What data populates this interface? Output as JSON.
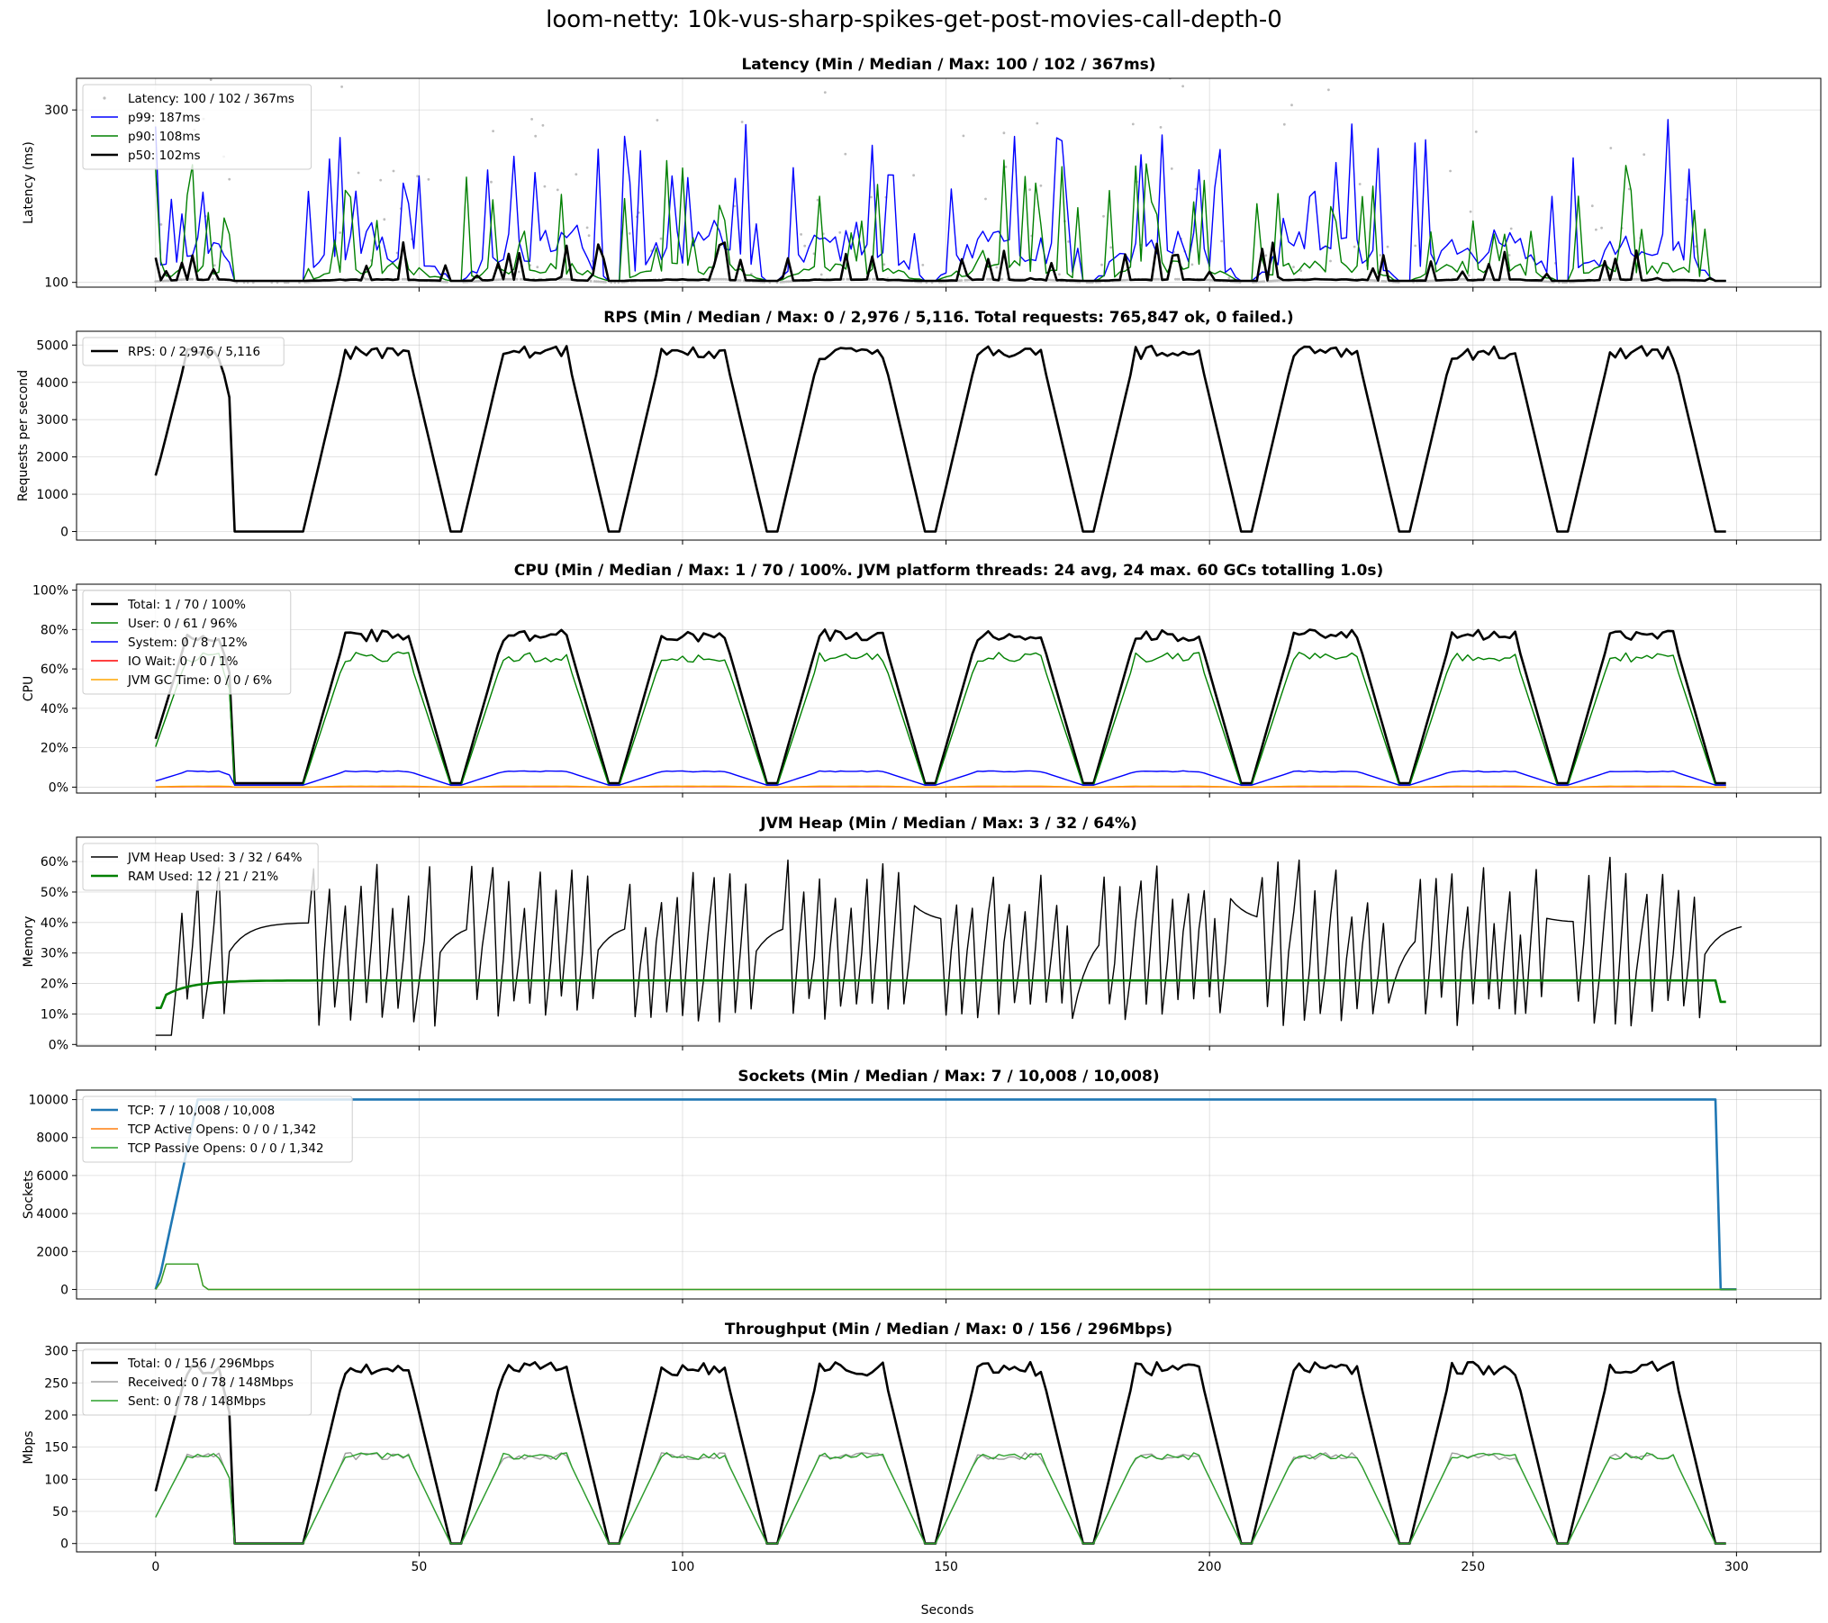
{
  "figure": {
    "title": "loom-netty: 10k-vus-sharp-spikes-get-post-movies-call-depth-0",
    "xlabel": "Seconds",
    "xlim": [
      -15,
      316
    ],
    "xticks": [
      0,
      50,
      100,
      150,
      200,
      250,
      300
    ],
    "cycle": {
      "period": 30,
      "first_rise": 28,
      "ramp": 8,
      "plateau": 6,
      "end": 295
    },
    "colors": {
      "black": "#000000",
      "blue": "#0000ff",
      "green": "#008000",
      "red": "#ff0000",
      "orange": "#ffa500",
      "gray": "#9e9e9e",
      "scatter": "#bdbdbd",
      "tcp": "#1f77b4",
      "tcp_active": "#ff7f0e",
      "tcp_passive": "#2ca02c",
      "sent": "#2ca02c"
    }
  },
  "chart_data": [
    {
      "id": "latency",
      "type": "line",
      "title": "Latency (Min / Median / Max: 100 / 102 / 367ms)",
      "ylabel": "Latency (ms)",
      "scale": "log",
      "ylim": [
        97,
        367
      ],
      "yticks": [
        {
          "v": 100,
          "label": "100"
        },
        {
          "v": 300,
          "label": "300"
        }
      ],
      "legend_position": "top-left",
      "series": [
        {
          "name": "Latency: 100 / 102 / 367ms",
          "color": "#bdbdbd",
          "kind": "scatter",
          "idle_value": 100,
          "active_value": 102,
          "max": 367
        },
        {
          "name": "p99: 187ms",
          "color": "#0000ff",
          "width": 1.4,
          "idle_value": 101,
          "active_value": 140,
          "max": 300
        },
        {
          "name": "p90: 108ms",
          "color": "#008000",
          "width": 1.4,
          "idle_value": 101,
          "active_value": 115,
          "max": 230
        },
        {
          "name": "p50: 102ms",
          "color": "#000000",
          "width": 2.6,
          "idle_value": 101,
          "active_value": 102,
          "max": 130
        }
      ]
    },
    {
      "id": "rps",
      "type": "line",
      "title": "RPS (Min / Median / Max: 0 / 2,976 / 5,116. Total requests: 765,847 ok, 0 failed.)",
      "ylabel": "Requests per second",
      "ylim": [
        -230,
        5370
      ],
      "yticks": [
        {
          "v": 0,
          "label": "0"
        },
        {
          "v": 1000,
          "label": "1000"
        },
        {
          "v": 2000,
          "label": "2000"
        },
        {
          "v": 3000,
          "label": "3000"
        },
        {
          "v": 4000,
          "label": "4000"
        },
        {
          "v": 5000,
          "label": "5000"
        }
      ],
      "legend_position": "top-left",
      "series": [
        {
          "name": "RPS: 0 / 2,976 / 5,116",
          "color": "#000000",
          "width": 2.6,
          "idle_value": 0,
          "active_value": 4800,
          "start_value": 1500
        }
      ]
    },
    {
      "id": "cpu",
      "type": "line",
      "title": "CPU (Min / Median / Max: 1 / 70 / 100%. JVM platform threads: 24 avg, 24 max. 60 GCs totalling 1.0s)",
      "ylabel": "CPU",
      "ylim": [
        -3,
        103
      ],
      "yticks": [
        {
          "v": 0,
          "label": "0%"
        },
        {
          "v": 20,
          "label": "20%"
        },
        {
          "v": 40,
          "label": "40%"
        },
        {
          "v": 60,
          "label": "60%"
        },
        {
          "v": 80,
          "label": "80%"
        },
        {
          "v": 100,
          "label": "100%"
        }
      ],
      "legend_position": "top-left",
      "series": [
        {
          "name": "Total: 1 / 70 / 100%",
          "color": "#000000",
          "width": 2.6,
          "idle_value": 2,
          "active_value": 77
        },
        {
          "name": "User: 0 / 61 / 96%",
          "color": "#008000",
          "width": 1.4,
          "idle_value": 1,
          "active_value": 66
        },
        {
          "name": "System: 0 / 8 / 12%",
          "color": "#0000ff",
          "width": 1.4,
          "idle_value": 1,
          "active_value": 8
        },
        {
          "name": "IO Wait: 0 / 0 / 1%",
          "color": "#ff0000",
          "width": 1.4,
          "idle_value": 0,
          "active_value": 0.3
        },
        {
          "name": "JVM GC Time: 0 / 0 / 6%",
          "color": "#ffa500",
          "width": 1.4,
          "idle_value": 0,
          "active_value": 0.5
        }
      ]
    },
    {
      "id": "heap",
      "type": "line",
      "title": "JVM Heap (Min / Median / Max: 3 / 32 / 64%)",
      "ylabel": "Memory",
      "ylim": [
        -0.5,
        68
      ],
      "yticks": [
        {
          "v": 0,
          "label": "0%"
        },
        {
          "v": 10,
          "label": "10%"
        },
        {
          "v": 20,
          "label": "20%"
        },
        {
          "v": 30,
          "label": "30%"
        },
        {
          "v": 40,
          "label": "40%"
        },
        {
          "v": 50,
          "label": "50%"
        },
        {
          "v": 60,
          "label": "60%"
        }
      ],
      "legend_position": "top-left",
      "series": [
        {
          "name": "JVM Heap Used: 3 / 32 / 64%",
          "color": "#000000",
          "width": 1.4,
          "min": 3,
          "max": 64
        },
        {
          "name": "RAM Used: 12 / 21 / 21%",
          "color": "#008000",
          "width": 2.6,
          "min": 12,
          "max": 21
        }
      ]
    },
    {
      "id": "sockets",
      "type": "line",
      "title": "Sockets (Min / Median / Max: 7 / 10,008 / 10,008)",
      "ylabel": "Sockets",
      "ylim": [
        -500,
        10500
      ],
      "yticks": [
        {
          "v": 0,
          "label": "0"
        },
        {
          "v": 2000,
          "label": "2000"
        },
        {
          "v": 4000,
          "label": "4000"
        },
        {
          "v": 6000,
          "label": "6000"
        },
        {
          "v": 8000,
          "label": "8000"
        },
        {
          "v": 10000,
          "label": "10000"
        }
      ],
      "legend_position": "top-left",
      "series": [
        {
          "name": "TCP: 7 / 10,008 / 10,008",
          "color": "#1f77b4",
          "width": 2.6,
          "x": [
            0,
            1,
            8,
            296,
            297,
            300
          ],
          "y": [
            7,
            900,
            10008,
            10008,
            7,
            7
          ]
        },
        {
          "name": "TCP Active Opens: 0 / 0 / 1,342",
          "color": "#ff7f0e",
          "width": 1.4,
          "x": [
            0,
            1,
            2,
            8,
            9,
            10,
            300
          ],
          "y": [
            0,
            400,
            1342,
            1342,
            200,
            0,
            0
          ]
        },
        {
          "name": "TCP Passive Opens: 0 / 0 / 1,342",
          "color": "#2ca02c",
          "width": 1.4,
          "x": [
            0,
            1,
            2,
            8,
            9,
            10,
            300
          ],
          "y": [
            0,
            400,
            1342,
            1342,
            200,
            0,
            0
          ]
        }
      ]
    },
    {
      "id": "throughput",
      "type": "line",
      "title": "Throughput (Min / Median / Max: 0 / 156 / 296Mbps)",
      "ylabel": "Mbps",
      "ylim": [
        -13,
        312
      ],
      "yticks": [
        {
          "v": 0,
          "label": "0"
        },
        {
          "v": 50,
          "label": "50"
        },
        {
          "v": 100,
          "label": "100"
        },
        {
          "v": 150,
          "label": "150"
        },
        {
          "v": 200,
          "label": "200"
        },
        {
          "v": 250,
          "label": "250"
        },
        {
          "v": 300,
          "label": "300"
        }
      ],
      "legend_position": "top-left",
      "series": [
        {
          "name": "Total: 0 / 156 / 296Mbps",
          "color": "#000000",
          "width": 2.6,
          "idle_value": 0,
          "active_value": 272
        },
        {
          "name": "Received: 0 / 78 / 148Mbps",
          "color": "#9e9e9e",
          "width": 1.4,
          "idle_value": 0,
          "active_value": 136
        },
        {
          "name": "Sent: 0 / 78 / 148Mbps",
          "color": "#2ca02c",
          "width": 1.4,
          "idle_value": 0,
          "active_value": 136
        }
      ]
    }
  ]
}
